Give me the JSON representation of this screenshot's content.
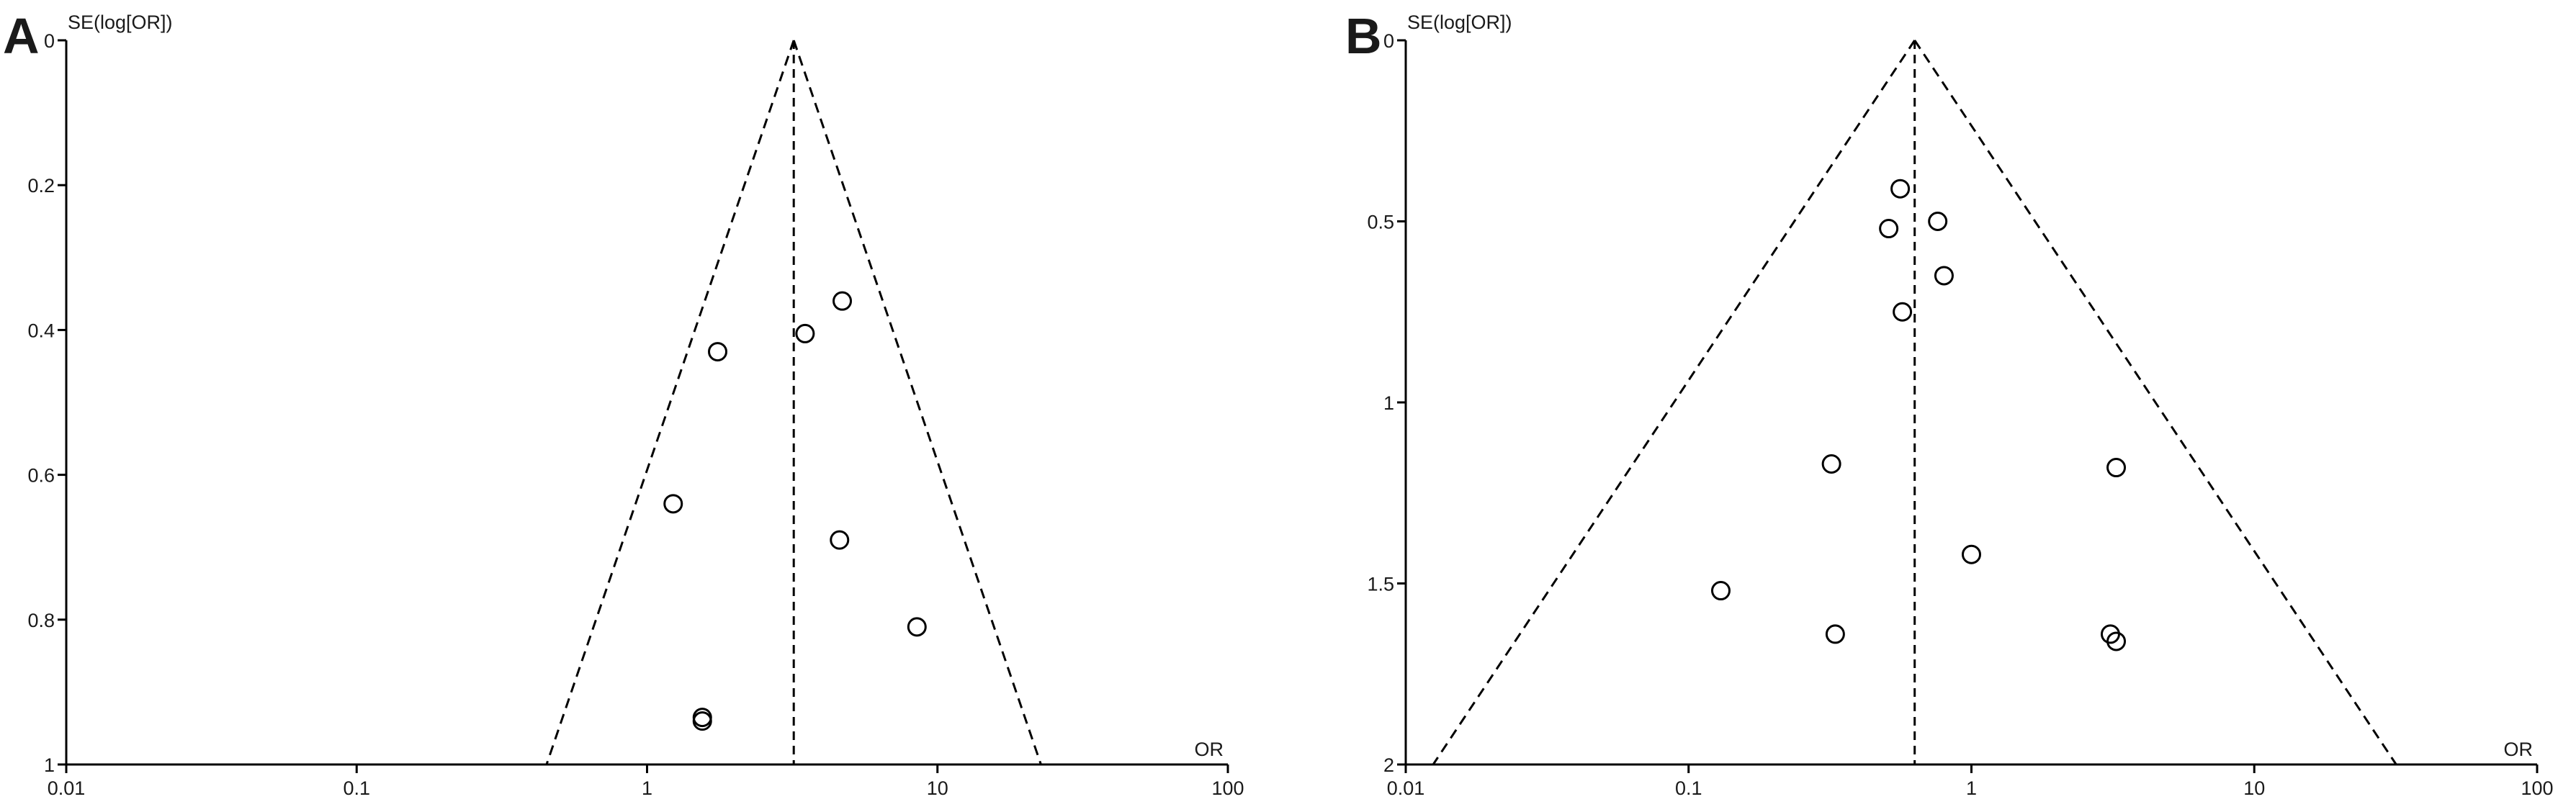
{
  "chart_data": [
    {
      "type": "scatter",
      "panel_label": "A",
      "xlabel": "OR",
      "ylabel": "SE(log[OR])",
      "x_scale": "log",
      "xlim": [
        0.01,
        100
      ],
      "ylim": [
        0,
        1
      ],
      "y_reversed": true,
      "x_ticks": [
        "0.01",
        "0.1",
        "1",
        "10",
        "100"
      ],
      "x_tick_values": [
        0.01,
        0.1,
        1,
        10,
        100
      ],
      "y_ticks": [
        "0",
        "0.2",
        "0.4",
        "0.6",
        "0.8",
        "1"
      ],
      "y_tick_values": [
        0,
        0.2,
        0.4,
        0.6,
        0.8,
        1
      ],
      "pooled_or": 3.2,
      "funnel": "95% pseudo confidence limits (dashed)",
      "points": [
        {
          "x": 4.7,
          "y": 0.36
        },
        {
          "x": 3.5,
          "y": 0.405
        },
        {
          "x": 1.75,
          "y": 0.43
        },
        {
          "x": 1.23,
          "y": 0.64
        },
        {
          "x": 4.6,
          "y": 0.69
        },
        {
          "x": 8.5,
          "y": 0.81
        },
        {
          "x": 1.55,
          "y": 0.935
        },
        {
          "x": 1.55,
          "y": 0.94
        }
      ]
    },
    {
      "type": "scatter",
      "panel_label": "B",
      "xlabel": "OR",
      "ylabel": "SE(log[OR])",
      "x_scale": "log",
      "xlim": [
        0.01,
        100
      ],
      "ylim": [
        0,
        2
      ],
      "y_reversed": true,
      "x_ticks": [
        "0.01",
        "0.1",
        "1",
        "10",
        "100"
      ],
      "x_tick_values": [
        0.01,
        0.1,
        1,
        10,
        100
      ],
      "y_ticks": [
        "0",
        "0.5",
        "1",
        "1.5",
        "2"
      ],
      "y_tick_values": [
        0,
        0.5,
        1,
        1.5,
        2
      ],
      "pooled_or": 0.63,
      "funnel": "95% pseudo confidence limits (dashed)",
      "points": [
        {
          "x": 0.56,
          "y": 0.41
        },
        {
          "x": 0.76,
          "y": 0.5
        },
        {
          "x": 0.51,
          "y": 0.52
        },
        {
          "x": 0.8,
          "y": 0.65
        },
        {
          "x": 0.57,
          "y": 0.75
        },
        {
          "x": 0.32,
          "y": 1.17
        },
        {
          "x": 3.25,
          "y": 1.18
        },
        {
          "x": 1.0,
          "y": 1.42
        },
        {
          "x": 0.13,
          "y": 1.52
        },
        {
          "x": 0.33,
          "y": 1.64
        },
        {
          "x": 3.1,
          "y": 1.64
        },
        {
          "x": 3.25,
          "y": 1.66
        }
      ]
    }
  ]
}
